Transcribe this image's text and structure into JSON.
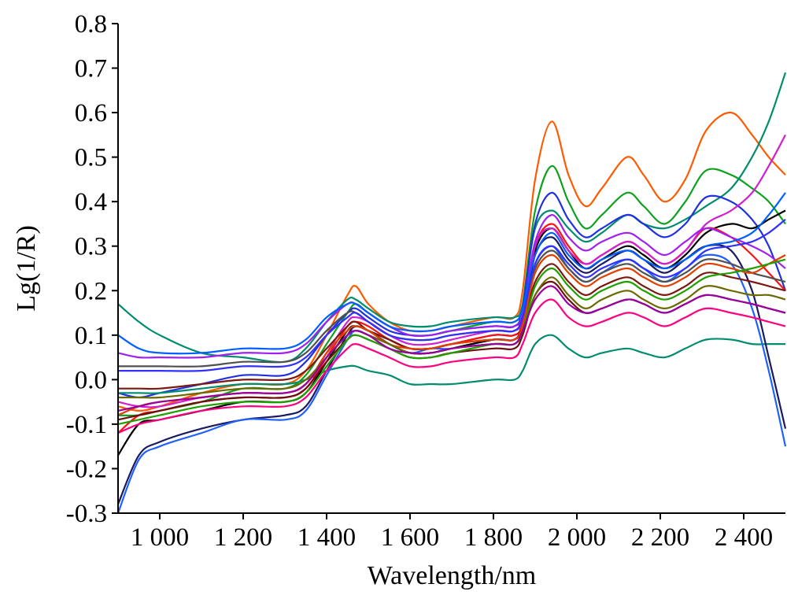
{
  "chart_data": {
    "type": "line",
    "title": "",
    "xlabel": "Wavelength/nm",
    "ylabel": "Lg(1/R)",
    "xlim": [
      900,
      2500
    ],
    "ylim": [
      -0.3,
      0.8
    ],
    "xticks": [
      1000,
      1200,
      1400,
      1600,
      1800,
      2000,
      2200,
      2400
    ],
    "xtick_labels": [
      "1 000",
      "1 200",
      "1 400",
      "1 600",
      "1 800",
      "2 000",
      "2 200",
      "2 400"
    ],
    "yticks": [
      -0.3,
      -0.2,
      -0.1,
      0.0,
      0.1,
      0.2,
      0.3,
      0.4,
      0.5,
      0.6,
      0.7,
      0.8
    ],
    "ytick_labels": [
      "-0.3",
      "-0.2",
      "-0.1",
      "0.0",
      "0.1",
      "0.2",
      "0.3",
      "0.4",
      "0.5",
      "0.6",
      "0.7",
      "0.8"
    ],
    "grid": false,
    "legend": "none",
    "x": [
      900,
      950,
      1000,
      1100,
      1200,
      1300,
      1350,
      1400,
      1450,
      1470,
      1500,
      1550,
      1600,
      1650,
      1700,
      1800,
      1850,
      1870,
      1900,
      1940,
      1980,
      2020,
      2060,
      2120,
      2160,
      2210,
      2260,
      2310,
      2370,
      2420,
      2460,
      2500
    ],
    "series": [
      {
        "color": "#ff5a00",
        "values": [
          -0.06,
          -0.07,
          -0.06,
          -0.03,
          -0.01,
          -0.01,
          0.02,
          0.1,
          0.19,
          0.21,
          0.17,
          0.13,
          0.11,
          0.11,
          0.12,
          0.14,
          0.14,
          0.2,
          0.45,
          0.58,
          0.46,
          0.39,
          0.43,
          0.5,
          0.46,
          0.4,
          0.45,
          0.56,
          0.6,
          0.55,
          0.5,
          0.46
        ]
      },
      {
        "color": "#10a020",
        "values": [
          -0.08,
          -0.08,
          -0.07,
          -0.05,
          -0.02,
          -0.02,
          0.01,
          0.08,
          0.15,
          0.17,
          0.15,
          0.12,
          0.1,
          0.1,
          0.11,
          0.13,
          0.13,
          0.17,
          0.38,
          0.48,
          0.4,
          0.34,
          0.37,
          0.42,
          0.39,
          0.35,
          0.4,
          0.47,
          0.46,
          0.43,
          0.4,
          0.35
        ]
      },
      {
        "color": "#008c6e",
        "values": [
          0.17,
          0.13,
          0.1,
          0.06,
          0.05,
          0.04,
          0.07,
          0.13,
          0.18,
          0.18,
          0.16,
          0.13,
          0.12,
          0.12,
          0.13,
          0.14,
          0.14,
          0.17,
          0.34,
          0.38,
          0.34,
          0.31,
          0.33,
          0.37,
          0.35,
          0.34,
          0.36,
          0.39,
          0.43,
          0.5,
          0.58,
          0.69
        ]
      },
      {
        "color": "#2030e0",
        "values": [
          -0.03,
          -0.04,
          -0.03,
          -0.01,
          0.01,
          0.01,
          0.04,
          0.1,
          0.15,
          0.16,
          0.14,
          0.11,
          0.1,
          0.1,
          0.11,
          0.12,
          0.12,
          0.16,
          0.35,
          0.42,
          0.36,
          0.32,
          0.34,
          0.37,
          0.35,
          0.32,
          0.35,
          0.41,
          0.4,
          0.36,
          0.3,
          0.2
        ]
      },
      {
        "color": "#008c6e",
        "values": [
          -0.03,
          -0.03,
          -0.03,
          -0.02,
          -0.01,
          -0.01,
          0.0,
          0.02,
          0.03,
          0.03,
          0.02,
          0.01,
          -0.01,
          -0.01,
          -0.01,
          0.0,
          0.0,
          0.02,
          0.08,
          0.1,
          0.07,
          0.05,
          0.06,
          0.07,
          0.06,
          0.05,
          0.07,
          0.09,
          0.09,
          0.08,
          0.08,
          0.08
        ]
      },
      {
        "color": "#1a1a60",
        "values": [
          -0.28,
          -0.17,
          -0.14,
          -0.11,
          -0.09,
          -0.08,
          -0.06,
          0.02,
          0.1,
          0.12,
          0.11,
          0.09,
          0.07,
          0.07,
          0.08,
          0.1,
          0.1,
          0.13,
          0.28,
          0.32,
          0.27,
          0.24,
          0.26,
          0.29,
          0.27,
          0.24,
          0.27,
          0.3,
          0.29,
          0.2,
          0.05,
          -0.11
        ]
      },
      {
        "color": "#2060ff",
        "values": [
          -0.3,
          -0.18,
          -0.15,
          -0.12,
          -0.09,
          -0.09,
          -0.07,
          0.01,
          0.09,
          0.11,
          0.1,
          0.08,
          0.06,
          0.07,
          0.07,
          0.09,
          0.09,
          0.12,
          0.26,
          0.3,
          0.25,
          0.22,
          0.24,
          0.27,
          0.25,
          0.22,
          0.25,
          0.28,
          0.26,
          0.16,
          0.02,
          -0.15
        ]
      },
      {
        "color": "#000000",
        "values": [
          -0.17,
          -0.1,
          -0.09,
          -0.07,
          -0.05,
          -0.05,
          -0.03,
          0.04,
          0.11,
          0.12,
          0.11,
          0.08,
          0.06,
          0.06,
          0.07,
          0.09,
          0.09,
          0.13,
          0.29,
          0.34,
          0.29,
          0.25,
          0.27,
          0.3,
          0.28,
          0.25,
          0.28,
          0.33,
          0.35,
          0.34,
          0.36,
          0.38
        ]
      },
      {
        "color": "#ff1010",
        "values": [
          -0.12,
          -0.08,
          -0.07,
          -0.05,
          -0.04,
          -0.04,
          -0.02,
          0.05,
          0.12,
          0.13,
          0.12,
          0.09,
          0.07,
          0.07,
          0.08,
          0.1,
          0.1,
          0.13,
          0.3,
          0.35,
          0.3,
          0.26,
          0.28,
          0.31,
          0.29,
          0.26,
          0.29,
          0.34,
          0.32,
          0.28,
          0.24,
          0.2
        ]
      },
      {
        "color": "#d020d0",
        "values": [
          -0.05,
          -0.06,
          -0.06,
          -0.04,
          -0.03,
          -0.03,
          -0.01,
          0.06,
          0.13,
          0.14,
          0.13,
          0.1,
          0.08,
          0.08,
          0.09,
          0.11,
          0.11,
          0.14,
          0.3,
          0.34,
          0.29,
          0.26,
          0.28,
          0.31,
          0.29,
          0.26,
          0.29,
          0.35,
          0.38,
          0.42,
          0.48,
          0.55
        ]
      },
      {
        "color": "#a020f0",
        "values": [
          0.06,
          0.05,
          0.05,
          0.05,
          0.06,
          0.06,
          0.08,
          0.13,
          0.17,
          0.17,
          0.15,
          0.12,
          0.1,
          0.1,
          0.11,
          0.12,
          0.12,
          0.15,
          0.31,
          0.37,
          0.32,
          0.29,
          0.31,
          0.33,
          0.31,
          0.28,
          0.31,
          0.34,
          0.32,
          0.3,
          0.28,
          0.25
        ]
      },
      {
        "color": "#6a1010",
        "values": [
          -0.09,
          -0.08,
          -0.07,
          -0.05,
          -0.04,
          -0.04,
          -0.02,
          0.04,
          0.09,
          0.1,
          0.09,
          0.07,
          0.05,
          0.05,
          0.06,
          0.07,
          0.07,
          0.1,
          0.19,
          0.22,
          0.18,
          0.15,
          0.16,
          0.18,
          0.17,
          0.15,
          0.17,
          0.19,
          0.18,
          0.17,
          0.16,
          0.15
        ]
      },
      {
        "color": "#ff0080",
        "values": [
          -0.12,
          -0.1,
          -0.09,
          -0.07,
          -0.06,
          -0.06,
          -0.04,
          0.02,
          0.07,
          0.08,
          0.07,
          0.05,
          0.03,
          0.03,
          0.04,
          0.05,
          0.05,
          0.08,
          0.15,
          0.18,
          0.14,
          0.12,
          0.13,
          0.15,
          0.14,
          0.12,
          0.14,
          0.16,
          0.15,
          0.14,
          0.13,
          0.12
        ]
      },
      {
        "color": "#0060ff",
        "values": [
          0.1,
          0.07,
          0.06,
          0.06,
          0.07,
          0.07,
          0.09,
          0.14,
          0.17,
          0.17,
          0.15,
          0.12,
          0.11,
          0.11,
          0.12,
          0.13,
          0.13,
          0.16,
          0.28,
          0.33,
          0.28,
          0.25,
          0.27,
          0.29,
          0.27,
          0.25,
          0.27,
          0.3,
          0.31,
          0.33,
          0.37,
          0.42
        ]
      },
      {
        "color": "#505050",
        "values": [
          0.03,
          0.03,
          0.03,
          0.03,
          0.04,
          0.04,
          0.06,
          0.11,
          0.15,
          0.15,
          0.13,
          0.1,
          0.09,
          0.09,
          0.1,
          0.11,
          0.11,
          0.14,
          0.25,
          0.29,
          0.25,
          0.22,
          0.24,
          0.26,
          0.24,
          0.22,
          0.24,
          0.27,
          0.26,
          0.24,
          0.23,
          0.22
        ]
      },
      {
        "color": "#7a1a10",
        "values": [
          -0.02,
          -0.02,
          -0.02,
          -0.01,
          0.0,
          0.0,
          0.02,
          0.07,
          0.12,
          0.13,
          0.11,
          0.09,
          0.07,
          0.07,
          0.08,
          0.09,
          0.09,
          0.12,
          0.22,
          0.26,
          0.22,
          0.19,
          0.21,
          0.23,
          0.21,
          0.19,
          0.21,
          0.24,
          0.23,
          0.22,
          0.21,
          0.2
        ]
      },
      {
        "color": "#e04000",
        "values": [
          -0.08,
          -0.06,
          -0.05,
          -0.04,
          -0.03,
          -0.03,
          -0.01,
          0.06,
          0.11,
          0.12,
          0.11,
          0.08,
          0.07,
          0.07,
          0.08,
          0.09,
          0.09,
          0.12,
          0.24,
          0.28,
          0.24,
          0.21,
          0.23,
          0.25,
          0.23,
          0.21,
          0.23,
          0.26,
          0.25,
          0.24,
          0.26,
          0.28
        ]
      },
      {
        "color": "#20a000",
        "values": [
          -0.1,
          -0.09,
          -0.08,
          -0.06,
          -0.05,
          -0.05,
          -0.03,
          0.03,
          0.09,
          0.1,
          0.09,
          0.07,
          0.05,
          0.05,
          0.06,
          0.08,
          0.08,
          0.11,
          0.21,
          0.25,
          0.21,
          0.18,
          0.2,
          0.22,
          0.2,
          0.18,
          0.2,
          0.23,
          0.24,
          0.25,
          0.26,
          0.27
        ]
      },
      {
        "color": "#3030ff",
        "values": [
          0.02,
          0.02,
          0.02,
          0.02,
          0.03,
          0.03,
          0.05,
          0.1,
          0.14,
          0.15,
          0.13,
          0.1,
          0.09,
          0.09,
          0.1,
          0.11,
          0.11,
          0.14,
          0.26,
          0.3,
          0.26,
          0.23,
          0.25,
          0.27,
          0.25,
          0.23,
          0.25,
          0.29,
          0.3,
          0.31,
          0.33,
          0.36
        ]
      },
      {
        "color": "#6a6a00",
        "values": [
          -0.04,
          -0.04,
          -0.04,
          -0.03,
          -0.02,
          -0.02,
          0.0,
          0.05,
          0.1,
          0.11,
          0.1,
          0.08,
          0.06,
          0.06,
          0.07,
          0.08,
          0.08,
          0.11,
          0.19,
          0.23,
          0.19,
          0.16,
          0.18,
          0.2,
          0.18,
          0.16,
          0.18,
          0.21,
          0.2,
          0.19,
          0.19,
          0.18
        ]
      },
      {
        "color": "#9a00a0",
        "values": [
          -0.07,
          -0.06,
          -0.05,
          -0.04,
          -0.03,
          -0.03,
          -0.01,
          0.05,
          0.1,
          0.11,
          0.1,
          0.07,
          0.06,
          0.06,
          0.07,
          0.08,
          0.08,
          0.11,
          0.18,
          0.21,
          0.17,
          0.15,
          0.16,
          0.18,
          0.17,
          0.15,
          0.17,
          0.19,
          0.18,
          0.17,
          0.16,
          0.15
        ]
      }
    ]
  }
}
